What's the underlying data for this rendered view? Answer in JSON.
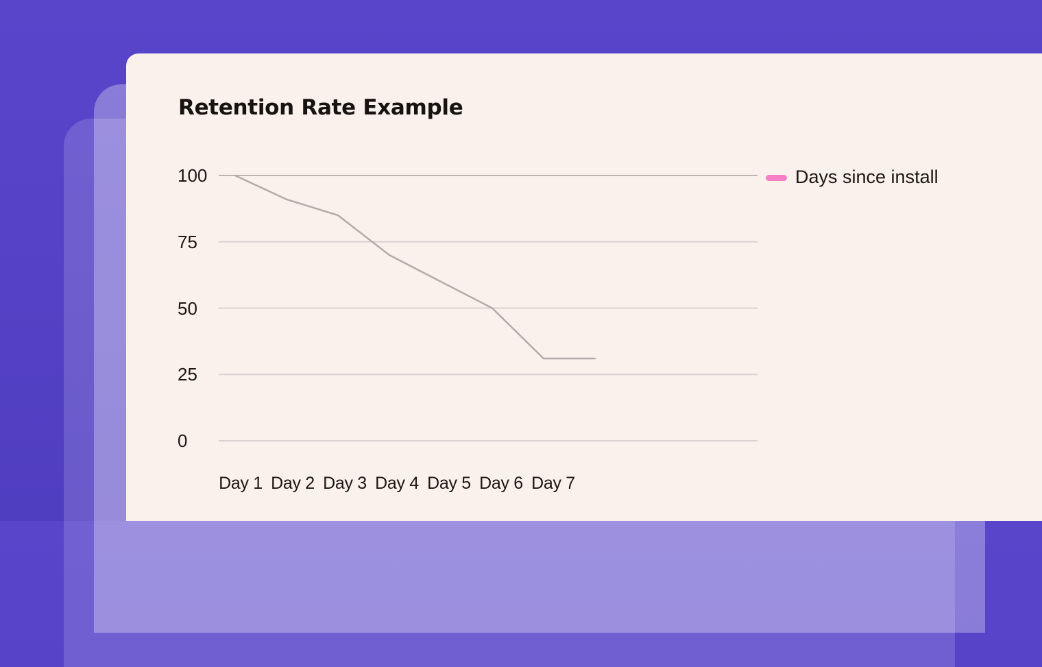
{
  "page": {
    "background_top_color": "#5945ca",
    "background_bottom_color": "#503ec1",
    "card_color": "#faf0ec"
  },
  "chart_data": {
    "type": "line",
    "title": "Retention Rate Example",
    "categories": [
      "Day 1",
      "Day 2",
      "Day 3",
      "Day 4",
      "Day 5",
      "Day 6",
      "Day 7"
    ],
    "series": [
      {
        "name": "Days since install",
        "values": [
          100,
          91,
          85,
          70,
          60,
          50,
          31
        ]
      }
    ],
    "extra_trailing_value": 31,
    "trailing_note": "line continues flat a short distance past Day 7",
    "yticks": [
      100,
      75,
      50,
      25,
      0
    ],
    "ylim": [
      0,
      100
    ],
    "grid": "horizontal",
    "legend_position": "right",
    "line_color": "#b3abaa",
    "legend_marker_color": "#f77fc8",
    "grid_color": "#d8d2d1",
    "grid_top_color": "#b3acab",
    "text_color": "#1b1713"
  }
}
